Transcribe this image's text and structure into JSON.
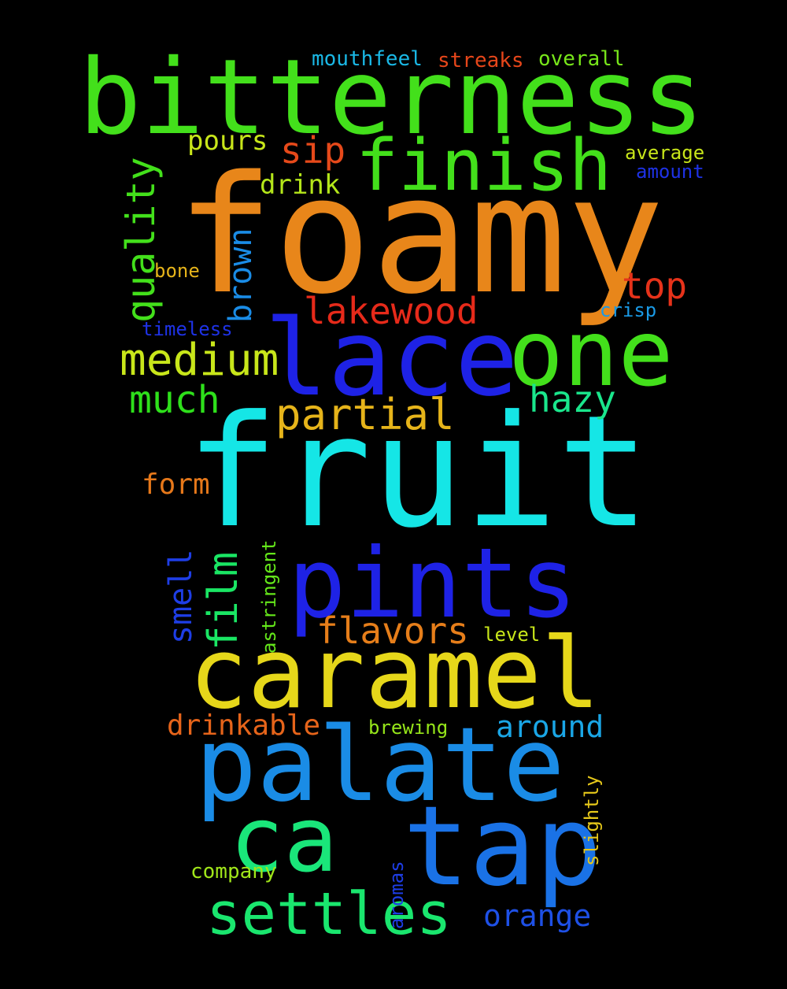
{
  "words": {
    "foamy": {
      "text": "foamy",
      "color": "#e8861a"
    },
    "fruit": {
      "text": "fruit",
      "color": "#15e6e6"
    },
    "bitterness": {
      "text": "bitterness",
      "color": "#43e01b"
    },
    "lace": {
      "text": "lace",
      "color": "#1e22e6"
    },
    "one": {
      "text": "one",
      "color": "#43e01b"
    },
    "pints": {
      "text": "pints",
      "color": "#1e22e6"
    },
    "caramel": {
      "text": "caramel",
      "color": "#e6d71a"
    },
    "palate": {
      "text": "palate",
      "color": "#1a8ce6"
    },
    "finish": {
      "text": "finish",
      "color": "#43e01b"
    },
    "ca": {
      "text": "ca",
      "color": "#1ae67a"
    },
    "tap": {
      "text": "tap",
      "color": "#1a72e6"
    },
    "settles": {
      "text": "settles",
      "color": "#1ae66e"
    },
    "lakewood": {
      "text": "lakewood",
      "color": "#e62a1a"
    },
    "medium": {
      "text": "medium",
      "color": "#c8e61a"
    },
    "partial": {
      "text": "partial",
      "color": "#e6b41a"
    },
    "quality": {
      "text": "quality",
      "color": "#43e01b"
    },
    "sip": {
      "text": "sip",
      "color": "#e6491a"
    },
    "top": {
      "text": "top",
      "color": "#e6321a"
    },
    "much": {
      "text": "much",
      "color": "#2ee01b"
    },
    "hazy": {
      "text": "hazy",
      "color": "#1ae68c"
    },
    "flavors": {
      "text": "flavors",
      "color": "#e67e1a"
    },
    "drinkable": {
      "text": "drinkable",
      "color": "#e6641a"
    },
    "around": {
      "text": "around",
      "color": "#1aa6e6"
    },
    "orange": {
      "text": "orange",
      "color": "#1e50e6"
    },
    "film": {
      "text": "film",
      "color": "#1ae664"
    },
    "smell": {
      "text": "smell",
      "color": "#1e3ee6"
    },
    "brown": {
      "text": "brown",
      "color": "#1a8ce6"
    },
    "pours": {
      "text": "pours",
      "color": "#c8e61a"
    },
    "drink": {
      "text": "drink",
      "color": "#b4e61a"
    },
    "form": {
      "text": "form",
      "color": "#e6781a"
    },
    "mouthfeel": {
      "text": "mouthfeel",
      "color": "#1ab8e6"
    },
    "streaks": {
      "text": "streaks",
      "color": "#e6461a"
    },
    "overall": {
      "text": "overall",
      "color": "#78e61a"
    },
    "average": {
      "text": "average",
      "color": "#c8e61a"
    },
    "amount": {
      "text": "amount",
      "color": "#1e32e6"
    },
    "bone": {
      "text": "bone",
      "color": "#e6b41a"
    },
    "timeless": {
      "text": "timeless",
      "color": "#1e32e6"
    },
    "crisp": {
      "text": "crisp",
      "color": "#1a9ae6"
    },
    "astringent": {
      "text": "astringent",
      "color": "#64e61a"
    },
    "level": {
      "text": "level",
      "color": "#c8e61a"
    },
    "brewing": {
      "text": "brewing",
      "color": "#96e61a"
    },
    "slightly": {
      "text": "slightly",
      "color": "#e6c81a"
    },
    "company": {
      "text": "company",
      "color": "#a0e61a"
    },
    "aromas": {
      "text": "aromas",
      "color": "#1e3ee6"
    }
  }
}
